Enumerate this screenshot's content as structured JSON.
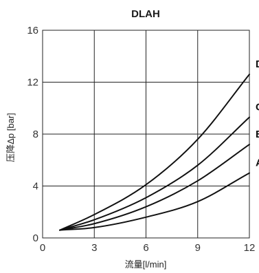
{
  "chart_data": {
    "type": "line",
    "title": "DLAH",
    "xlabel": "流量[l/min]",
    "ylabel": "压降Δp [bar]",
    "xlim": [
      0,
      12
    ],
    "ylim": [
      0,
      16
    ],
    "xticks": [
      0,
      3,
      6,
      9,
      12
    ],
    "yticks": [
      0,
      4,
      8,
      12,
      16
    ],
    "grid": true,
    "series": [
      {
        "name": "D",
        "x": [
          1,
          3,
          6,
          9,
          12
        ],
        "y": [
          0.6,
          1.8,
          4.1,
          7.6,
          12.6
        ]
      },
      {
        "name": "C",
        "x": [
          1,
          3,
          6,
          9,
          12
        ],
        "y": [
          0.6,
          1.4,
          3.1,
          5.6,
          9.3
        ]
      },
      {
        "name": "B",
        "x": [
          1,
          3,
          6,
          9,
          12
        ],
        "y": [
          0.6,
          1.1,
          2.4,
          4.4,
          7.2
        ]
      },
      {
        "name": "A",
        "x": [
          1,
          3,
          6,
          9,
          12
        ],
        "y": [
          0.6,
          0.8,
          1.6,
          2.8,
          5.0
        ]
      }
    ],
    "line_color": "#111111",
    "grid_color": "#222222"
  }
}
